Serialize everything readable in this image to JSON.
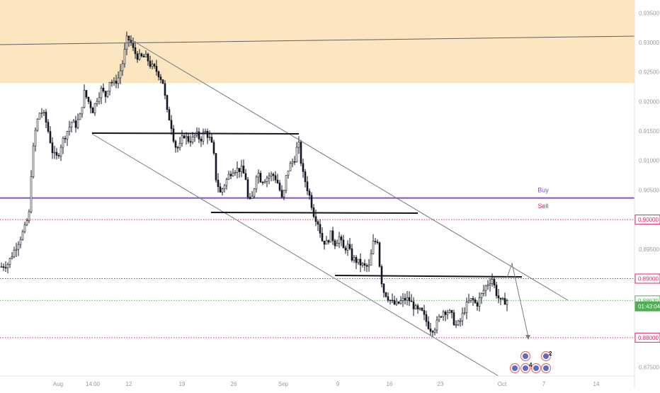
{
  "chart_data": {
    "type": "candlestick",
    "x_ticks": [
      "Aug",
      "14:00",
      "12",
      "19",
      "26",
      "Sep",
      "9",
      "16",
      "23",
      "Oct",
      "7",
      "14"
    ],
    "y_ticks": [
      "0.93500",
      "0.93000",
      "0.92500",
      "0.92000",
      "0.91500",
      "0.91000",
      "0.90500",
      "0.90000",
      "0.89500",
      "0.89000",
      "0.88500",
      "0.88000",
      "0.87500"
    ],
    "ylim": [
      0.8735,
      0.9372
    ],
    "supply_zone": [
      0.9231,
      0.9372
    ],
    "levels": [
      {
        "name": "buy-line",
        "label": "Buy",
        "price": 0.90365,
        "color": "#7e57c2"
      },
      {
        "name": "sell-line",
        "label": "Sell",
        "price": 0.9,
        "color": "#e91e63"
      },
      {
        "name": "level-0.89",
        "label": "",
        "price": 0.89,
        "color": "#e91e63"
      },
      {
        "name": "level-0.88",
        "label": "",
        "price": 0.88,
        "color": "#e91e63"
      }
    ],
    "price_tags": [
      {
        "text": "0.90000",
        "price": 0.9,
        "color": "#e91e63",
        "style": "outline"
      },
      {
        "text": "0.89000",
        "price": 0.89,
        "color": "#e91e63",
        "style": "outline"
      },
      {
        "text": "0.88630",
        "price": 0.8863,
        "color": "#4caf50",
        "style": "outline"
      },
      {
        "text": "01:43:04",
        "price": 0.8853,
        "color": "#4caf50",
        "style": "filled"
      },
      {
        "text": "0.88000",
        "price": 0.88,
        "color": "#e91e63",
        "style": "outline"
      }
    ],
    "current_price": 0.8863,
    "countdown": "01:43:04",
    "event_badges": [
      "4",
      "2"
    ],
    "colors": {
      "up": "#131722",
      "down": "#131722",
      "zone": "#fbe6c0",
      "current": "#4caf50"
    }
  }
}
